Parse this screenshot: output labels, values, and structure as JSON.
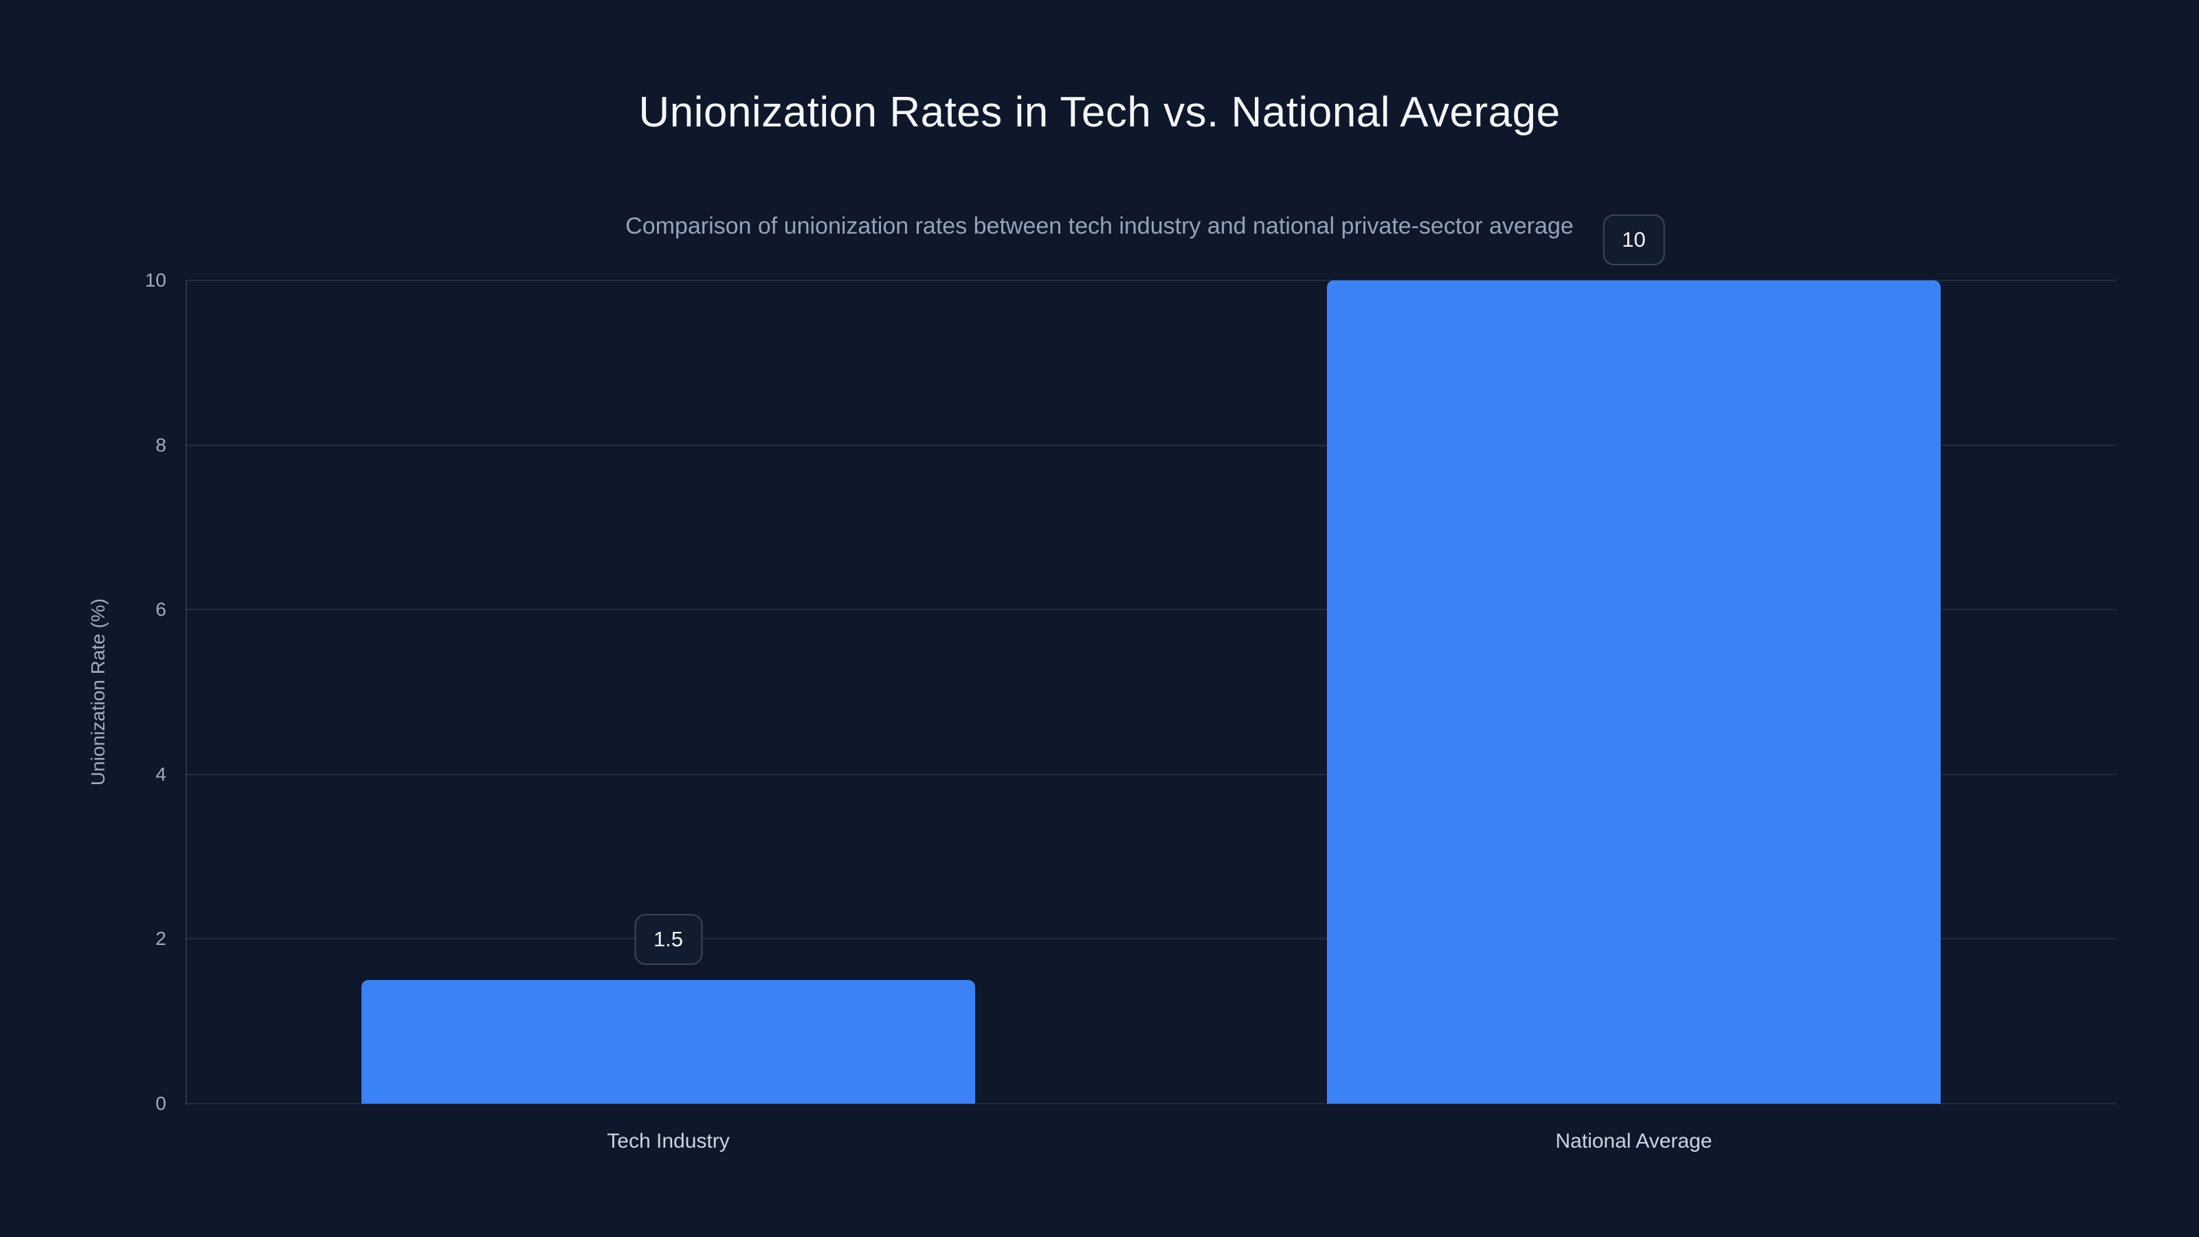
{
  "chart_data": {
    "type": "bar",
    "title": "Unionization Rates in Tech vs. National Average",
    "subtitle": "Comparison of unionization rates between tech industry and national private-sector average",
    "categories": [
      "Tech Industry",
      "National Average"
    ],
    "values": [
      1.5,
      10
    ],
    "value_labels": [
      "1.5",
      "10"
    ],
    "xlabel": "",
    "ylabel": "Unionization Rate (%)",
    "ylim": [
      0,
      10
    ],
    "yticks": [
      0,
      2,
      4,
      6,
      8,
      10
    ],
    "grid": true,
    "legend": false,
    "colors": {
      "background": "#0f172a",
      "bar": "#3b82f6",
      "gridline": "rgba(148,163,184,0.16)",
      "axis_line": "rgba(148,163,184,0.22)",
      "title_text": "#f4f7fb",
      "subtitle_text": "#94a3b8",
      "tick_text": "#9fadc0",
      "category_text": "#cbd5e1",
      "badge_background": "#121c2f",
      "badge_border": "#3a465a",
      "badge_text": "#f4f7fb"
    }
  }
}
